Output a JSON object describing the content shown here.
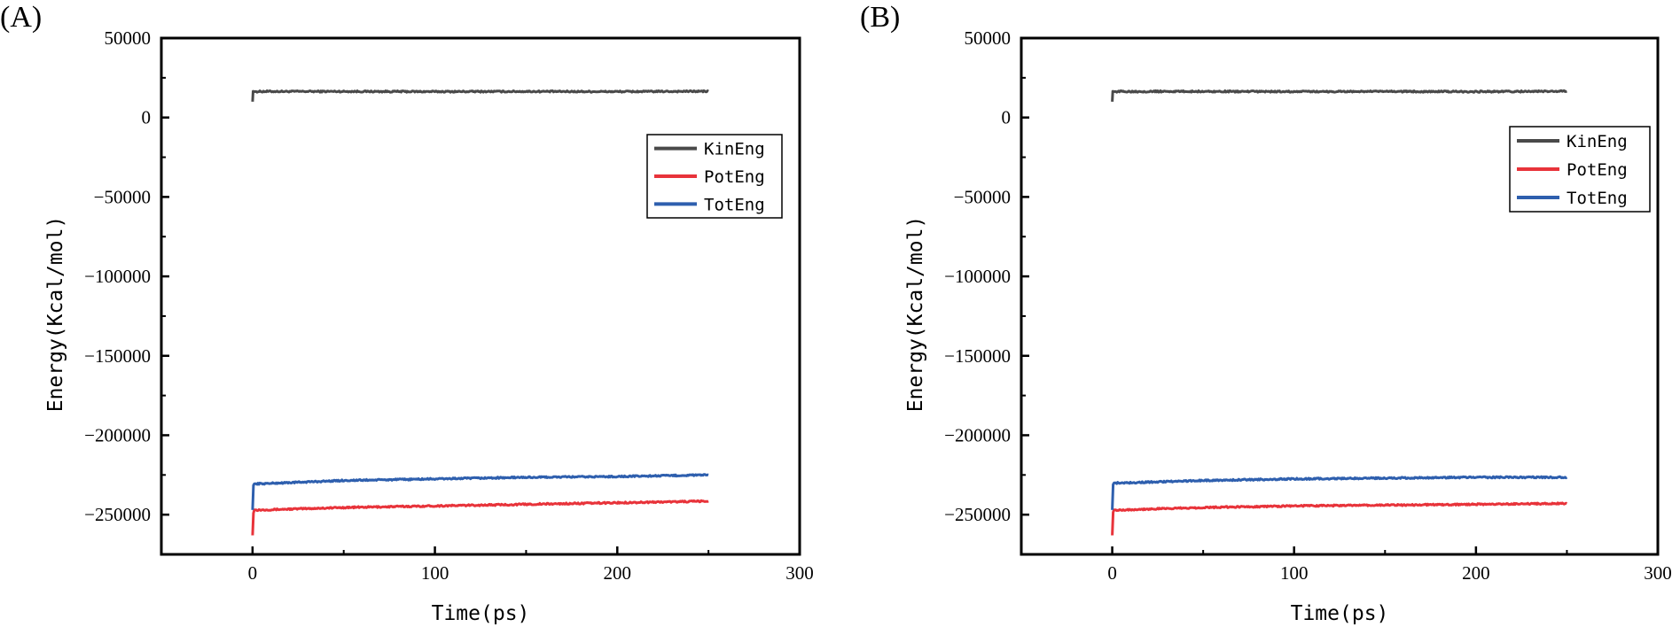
{
  "chart_data": [
    {
      "type": "line",
      "panel_label": "(A)",
      "xlabel": "Time(ps)",
      "ylabel": "Energy(Kcal/mol)",
      "xlim": [
        -50,
        300
      ],
      "ylim": [
        -275000,
        50000
      ],
      "xticks": [
        0,
        100,
        200,
        300
      ],
      "yticks": [
        50000,
        0,
        -50000,
        -100000,
        -150000,
        -200000,
        -250000
      ],
      "grid": false,
      "legend_position": "right",
      "series": [
        {
          "name": "KinEng",
          "color": "#4a4a4a",
          "x": [
            0,
            0.3,
            1,
            5,
            50,
            100,
            150,
            200,
            250
          ],
          "y": [
            10000,
            16500,
            16300,
            16400,
            16400,
            16300,
            16400,
            16300,
            16500
          ]
        },
        {
          "name": "PotEng",
          "color": "#e8333a",
          "x": [
            0,
            0.5,
            1,
            5,
            50,
            100,
            150,
            200,
            250
          ],
          "y": [
            -263000,
            -249000,
            -247000,
            -247000,
            -245500,
            -244500,
            -243500,
            -242500,
            -241500
          ]
        },
        {
          "name": "TotEng",
          "color": "#2e5fae",
          "x": [
            0,
            0.5,
            1,
            5,
            50,
            100,
            150,
            200,
            250
          ],
          "y": [
            -247000,
            -231500,
            -230500,
            -230500,
            -228500,
            -227500,
            -226500,
            -226000,
            -225000
          ]
        }
      ]
    },
    {
      "type": "line",
      "panel_label": "(B)",
      "xlabel": "Time(ps)",
      "ylabel": "Energy(Kcal/mol)",
      "xlim": [
        -50,
        300
      ],
      "ylim": [
        -275000,
        50000
      ],
      "xticks": [
        0,
        100,
        200,
        300
      ],
      "yticks": [
        50000,
        0,
        -50000,
        -100000,
        -150000,
        -200000,
        -250000
      ],
      "grid": false,
      "legend_position": "top-right",
      "series": [
        {
          "name": "KinEng",
          "color": "#4a4a4a",
          "x": [
            0,
            0.3,
            1,
            5,
            50,
            100,
            150,
            200,
            250
          ],
          "y": [
            10000,
            16500,
            16300,
            16400,
            16400,
            16300,
            16400,
            16300,
            16500
          ]
        },
        {
          "name": "PotEng",
          "color": "#e8333a",
          "x": [
            0,
            0.5,
            1,
            5,
            50,
            100,
            150,
            200,
            250
          ],
          "y": [
            -263000,
            -248500,
            -247000,
            -247000,
            -245500,
            -244500,
            -244000,
            -243500,
            -243000
          ]
        },
        {
          "name": "TotEng",
          "color": "#2e5fae",
          "x": [
            0,
            0.5,
            1,
            5,
            50,
            100,
            150,
            200,
            250
          ],
          "y": [
            -247000,
            -231000,
            -230000,
            -230000,
            -228500,
            -227500,
            -227000,
            -226500,
            -226500
          ]
        }
      ]
    }
  ]
}
